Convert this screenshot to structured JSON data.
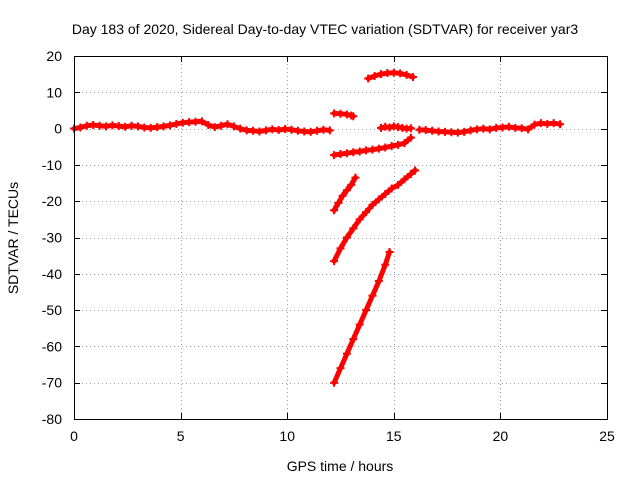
{
  "chart_data": {
    "type": "scatter",
    "title": "Day 183 of 2020, Sidereal Day-to-day VTEC variation (SDTVAR) for receiver yar3",
    "xlabel": "GPS time / hours",
    "ylabel": "SDTVAR / TECUs",
    "xlim": [
      0,
      25
    ],
    "ylim": [
      -80,
      20
    ],
    "xticks": [
      0,
      5,
      10,
      15,
      20,
      25
    ],
    "yticks": [
      20,
      10,
      0,
      -10,
      -20,
      -30,
      -40,
      -50,
      -60,
      -70,
      -80
    ],
    "grid": true,
    "marker": "plus",
    "color": "#ff0000",
    "series": [
      {
        "x": [
          0.0,
          0.3,
          0.6,
          0.9,
          1.2,
          1.5,
          1.8,
          2.1,
          2.4,
          2.7,
          3.0,
          3.3,
          3.6,
          3.9,
          4.2,
          4.5,
          4.8,
          5.1,
          5.4,
          5.7,
          6.0,
          6.3,
          6.6,
          6.9,
          7.2,
          7.5,
          7.8,
          8.1,
          8.4,
          8.7,
          9.0,
          9.3,
          9.6,
          9.9,
          10.2,
          10.5,
          10.8,
          11.1,
          11.4,
          11.7,
          12.0
        ],
        "y": [
          0.0,
          0.3,
          0.8,
          1.0,
          0.8,
          0.6,
          0.9,
          0.7,
          0.5,
          0.8,
          0.6,
          0.3,
          0.2,
          0.4,
          0.6,
          0.9,
          1.3,
          1.6,
          1.8,
          1.9,
          2.0,
          1.0,
          0.4,
          0.8,
          1.2,
          0.6,
          0.0,
          -0.5,
          -0.6,
          -0.8,
          -0.5,
          -0.2,
          -0.4,
          -0.1,
          -0.3,
          -0.6,
          -0.8,
          -0.9,
          -0.6,
          -0.3,
          -0.5
        ]
      },
      {
        "x": [
          12.2,
          12.5,
          12.8,
          13.0,
          13.1
        ],
        "y": [
          4.2,
          4.1,
          3.9,
          3.6,
          3.4
        ]
      },
      {
        "x": [
          12.2,
          12.5,
          12.8,
          13.1,
          13.4,
          13.7,
          14.0,
          14.3,
          14.6,
          14.9,
          15.2,
          15.5,
          15.8
        ],
        "y": [
          -7.3,
          -7.0,
          -6.8,
          -6.5,
          -6.3,
          -6.0,
          -5.8,
          -5.5,
          -5.2,
          -4.8,
          -4.5,
          -4.0,
          -2.5
        ]
      },
      {
        "x": [
          13.8,
          14.1,
          14.4,
          14.7,
          15.0,
          15.3,
          15.6,
          15.9
        ],
        "y": [
          13.8,
          14.5,
          15.0,
          15.3,
          15.4,
          15.2,
          14.8,
          14.2
        ]
      },
      {
        "x": [
          14.4,
          14.6,
          14.8,
          15.0,
          15.2,
          15.4,
          15.6,
          15.8
        ],
        "y": [
          0.2,
          0.5,
          0.3,
          0.6,
          0.4,
          0.2,
          0.0,
          0.1
        ]
      },
      {
        "x": [
          16.2,
          16.5,
          16.8,
          17.1,
          17.4,
          17.7,
          18.0,
          18.3,
          18.6,
          18.9,
          19.2,
          19.5,
          19.8,
          20.1,
          20.4,
          20.7,
          21.0,
          21.3,
          21.6,
          21.9,
          22.2,
          22.5,
          22.8
        ],
        "y": [
          -0.3,
          -0.4,
          -0.6,
          -0.8,
          -0.9,
          -1.0,
          -1.1,
          -0.9,
          -0.5,
          -0.2,
          0.0,
          -0.2,
          0.2,
          0.3,
          0.5,
          0.2,
          0.1,
          -0.2,
          1.1,
          1.5,
          1.3,
          1.5,
          1.2
        ]
      },
      {
        "x": [
          12.2,
          12.4,
          12.6,
          12.8,
          13.0,
          13.2
        ],
        "y": [
          -22.5,
          -20.5,
          -18.5,
          -17.0,
          -15.5,
          -13.5
        ]
      },
      {
        "x": [
          12.2,
          12.5,
          12.8,
          13.1,
          13.4,
          13.7,
          14.0,
          14.3,
          14.6,
          14.9,
          15.2,
          15.5,
          15.8,
          16.0
        ],
        "y": [
          -36.5,
          -33.0,
          -30.0,
          -27.5,
          -25.0,
          -23.0,
          -21.0,
          -19.5,
          -18.0,
          -16.5,
          -15.5,
          -14.0,
          -12.5,
          -11.5
        ]
      },
      {
        "x": [
          12.2,
          12.5,
          12.8,
          13.1,
          13.4,
          13.7,
          14.0,
          14.3,
          14.6,
          14.8
        ],
        "y": [
          -70.0,
          -66.0,
          -62.0,
          -58.0,
          -54.0,
          -50.0,
          -46.0,
          -42.0,
          -37.5,
          -34.0
        ]
      }
    ]
  }
}
